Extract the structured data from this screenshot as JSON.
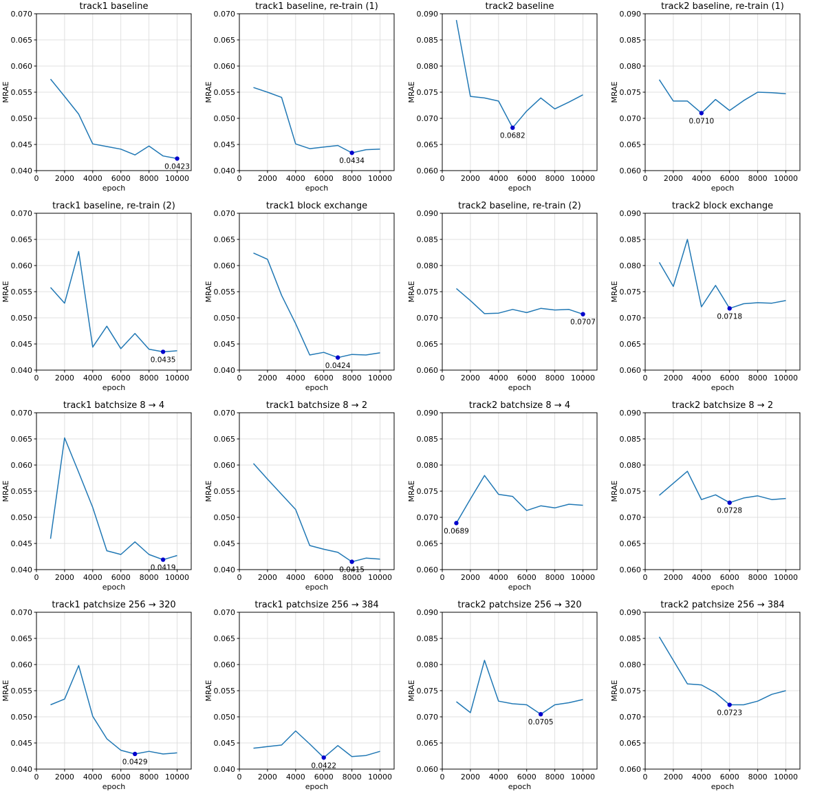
{
  "chart_data": [
    {
      "type": "line",
      "title": "track1 baseline",
      "xlabel": "epoch",
      "ylabel": "MRAE",
      "xlim": [
        0,
        11000
      ],
      "ylim": [
        0.04,
        0.07
      ],
      "xticks": [
        0,
        2000,
        4000,
        6000,
        8000,
        10000
      ],
      "yticks": [
        0.04,
        0.045,
        0.05,
        0.055,
        0.06,
        0.065,
        0.07
      ],
      "grid": true,
      "x": [
        1000,
        2000,
        3000,
        4000,
        5000,
        6000,
        7000,
        8000,
        9000,
        10000
      ],
      "y": [
        0.0575,
        0.0542,
        0.0508,
        0.0451,
        0.0446,
        0.0441,
        0.043,
        0.0447,
        0.0428,
        0.0423
      ],
      "best": {
        "x": 10000,
        "y": 0.0423,
        "label": "0.0423"
      }
    },
    {
      "type": "line",
      "title": "track1 baseline, re-train (1)",
      "xlabel": "epoch",
      "ylabel": "MRAE",
      "xlim": [
        0,
        11000
      ],
      "ylim": [
        0.04,
        0.07
      ],
      "xticks": [
        0,
        2000,
        4000,
        6000,
        8000,
        10000
      ],
      "yticks": [
        0.04,
        0.045,
        0.05,
        0.055,
        0.06,
        0.065,
        0.07
      ],
      "grid": true,
      "x": [
        1000,
        2000,
        3000,
        4000,
        5000,
        6000,
        7000,
        8000,
        9000,
        10000
      ],
      "y": [
        0.0559,
        0.055,
        0.054,
        0.0451,
        0.0442,
        0.0445,
        0.0448,
        0.0434,
        0.044,
        0.0441
      ],
      "best": {
        "x": 8000,
        "y": 0.0434,
        "label": "0.0434"
      }
    },
    {
      "type": "line",
      "title": "track2 baseline",
      "xlabel": "epoch",
      "ylabel": "MRAE",
      "xlim": [
        0,
        11000
      ],
      "ylim": [
        0.06,
        0.09
      ],
      "xticks": [
        0,
        2000,
        4000,
        6000,
        8000,
        10000
      ],
      "yticks": [
        0.06,
        0.065,
        0.07,
        0.075,
        0.08,
        0.085,
        0.09
      ],
      "grid": true,
      "x": [
        1000,
        2000,
        3000,
        4000,
        5000,
        6000,
        7000,
        8000,
        9000,
        10000
      ],
      "y": [
        0.0888,
        0.0742,
        0.0739,
        0.0733,
        0.0682,
        0.0714,
        0.0739,
        0.0718,
        0.0731,
        0.0745
      ],
      "best": {
        "x": 5000,
        "y": 0.0682,
        "label": "0.0682"
      }
    },
    {
      "type": "line",
      "title": "track2 baseline, re-train (1)",
      "xlabel": "epoch",
      "ylabel": "MRAE",
      "xlim": [
        0,
        11000
      ],
      "ylim": [
        0.06,
        0.09
      ],
      "xticks": [
        0,
        2000,
        4000,
        6000,
        8000,
        10000
      ],
      "yticks": [
        0.06,
        0.065,
        0.07,
        0.075,
        0.08,
        0.085,
        0.09
      ],
      "grid": true,
      "x": [
        1000,
        2000,
        3000,
        4000,
        5000,
        6000,
        7000,
        8000,
        9000,
        10000
      ],
      "y": [
        0.0774,
        0.0733,
        0.0733,
        0.071,
        0.0736,
        0.0715,
        0.0734,
        0.075,
        0.0749,
        0.0747
      ],
      "best": {
        "x": 4000,
        "y": 0.071,
        "label": "0.0710"
      }
    },
    {
      "type": "line",
      "title": "track1 baseline, re-train (2)",
      "xlabel": "epoch",
      "ylabel": "MRAE",
      "xlim": [
        0,
        11000
      ],
      "ylim": [
        0.04,
        0.07
      ],
      "xticks": [
        0,
        2000,
        4000,
        6000,
        8000,
        10000
      ],
      "yticks": [
        0.04,
        0.045,
        0.05,
        0.055,
        0.06,
        0.065,
        0.07
      ],
      "grid": true,
      "x": [
        1000,
        2000,
        3000,
        4000,
        5000,
        6000,
        7000,
        8000,
        9000,
        10000
      ],
      "y": [
        0.0558,
        0.0528,
        0.0627,
        0.0444,
        0.0484,
        0.0441,
        0.047,
        0.044,
        0.0435,
        0.0437
      ],
      "best": {
        "x": 9000,
        "y": 0.0435,
        "label": "0.0435"
      }
    },
    {
      "type": "line",
      "title": "track1 block exchange",
      "xlabel": "epoch",
      "ylabel": "MRAE",
      "xlim": [
        0,
        11000
      ],
      "ylim": [
        0.04,
        0.07
      ],
      "xticks": [
        0,
        2000,
        4000,
        6000,
        8000,
        10000
      ],
      "yticks": [
        0.04,
        0.045,
        0.05,
        0.055,
        0.06,
        0.065,
        0.07
      ],
      "grid": true,
      "x": [
        1000,
        2000,
        3000,
        4000,
        5000,
        6000,
        7000,
        8000,
        9000,
        10000
      ],
      "y": [
        0.0624,
        0.0612,
        0.0543,
        0.0489,
        0.0429,
        0.0434,
        0.0424,
        0.043,
        0.0429,
        0.0433
      ],
      "best": {
        "x": 7000,
        "y": 0.0424,
        "label": "0.0424"
      }
    },
    {
      "type": "line",
      "title": "track2 baseline, re-train (2)",
      "xlabel": "epoch",
      "ylabel": "MRAE",
      "xlim": [
        0,
        11000
      ],
      "ylim": [
        0.06,
        0.09
      ],
      "xticks": [
        0,
        2000,
        4000,
        6000,
        8000,
        10000
      ],
      "yticks": [
        0.06,
        0.065,
        0.07,
        0.075,
        0.08,
        0.085,
        0.09
      ],
      "grid": true,
      "x": [
        1000,
        2000,
        3000,
        4000,
        5000,
        6000,
        7000,
        8000,
        9000,
        10000
      ],
      "y": [
        0.0756,
        0.0733,
        0.0708,
        0.0709,
        0.0716,
        0.071,
        0.0718,
        0.0715,
        0.0716,
        0.0707
      ],
      "best": {
        "x": 10000,
        "y": 0.0707,
        "label": "0.0707"
      }
    },
    {
      "type": "line",
      "title": "track2 block exchange",
      "xlabel": "epoch",
      "ylabel": "MRAE",
      "xlim": [
        0,
        11000
      ],
      "ylim": [
        0.06,
        0.09
      ],
      "xticks": [
        0,
        2000,
        4000,
        6000,
        8000,
        10000
      ],
      "yticks": [
        0.06,
        0.065,
        0.07,
        0.075,
        0.08,
        0.085,
        0.09
      ],
      "grid": true,
      "x": [
        1000,
        2000,
        3000,
        4000,
        5000,
        6000,
        7000,
        8000,
        9000,
        10000
      ],
      "y": [
        0.0806,
        0.076,
        0.085,
        0.0721,
        0.0762,
        0.0718,
        0.0727,
        0.0729,
        0.0728,
        0.0733
      ],
      "best": {
        "x": 6000,
        "y": 0.0718,
        "label": "0.0718"
      }
    },
    {
      "type": "line",
      "title": "track1 batchsize 8 → 4",
      "xlabel": "epoch",
      "ylabel": "MRAE",
      "xlim": [
        0,
        11000
      ],
      "ylim": [
        0.04,
        0.07
      ],
      "xticks": [
        0,
        2000,
        4000,
        6000,
        8000,
        10000
      ],
      "yticks": [
        0.04,
        0.045,
        0.05,
        0.055,
        0.06,
        0.065,
        0.07
      ],
      "grid": true,
      "x": [
        1000,
        2000,
        3000,
        4000,
        5000,
        6000,
        7000,
        8000,
        9000,
        10000
      ],
      "y": [
        0.0459,
        0.0652,
        0.0586,
        0.0519,
        0.0436,
        0.0429,
        0.0453,
        0.0429,
        0.0419,
        0.0427
      ],
      "best": {
        "x": 9000,
        "y": 0.0419,
        "label": "0.0419"
      }
    },
    {
      "type": "line",
      "title": "track1 batchsize 8 → 2",
      "xlabel": "epoch",
      "ylabel": "MRAE",
      "xlim": [
        0,
        11000
      ],
      "ylim": [
        0.04,
        0.07
      ],
      "xticks": [
        0,
        2000,
        4000,
        6000,
        8000,
        10000
      ],
      "yticks": [
        0.04,
        0.045,
        0.05,
        0.055,
        0.06,
        0.065,
        0.07
      ],
      "grid": true,
      "x": [
        1000,
        2000,
        3000,
        4000,
        5000,
        6000,
        7000,
        8000,
        9000,
        10000
      ],
      "y": [
        0.0603,
        0.0573,
        0.0544,
        0.0515,
        0.0446,
        0.0439,
        0.0433,
        0.0415,
        0.0422,
        0.042
      ],
      "best": {
        "x": 8000,
        "y": 0.0415,
        "label": "0.0415"
      }
    },
    {
      "type": "line",
      "title": "track2 batchsize 8 → 4",
      "xlabel": "epoch",
      "ylabel": "MRAE",
      "xlim": [
        0,
        11000
      ],
      "ylim": [
        0.06,
        0.09
      ],
      "xticks": [
        0,
        2000,
        4000,
        6000,
        8000,
        10000
      ],
      "yticks": [
        0.06,
        0.065,
        0.07,
        0.075,
        0.08,
        0.085,
        0.09
      ],
      "grid": true,
      "x": [
        1000,
        2000,
        3000,
        4000,
        5000,
        6000,
        7000,
        8000,
        9000,
        10000
      ],
      "y": [
        0.0689,
        0.0735,
        0.078,
        0.0744,
        0.074,
        0.0713,
        0.0722,
        0.0718,
        0.0725,
        0.0723
      ],
      "best": {
        "x": 1000,
        "y": 0.0689,
        "label": "0.0689"
      }
    },
    {
      "type": "line",
      "title": "track2 batchsize 8 → 2",
      "xlabel": "epoch",
      "ylabel": "MRAE",
      "xlim": [
        0,
        11000
      ],
      "ylim": [
        0.06,
        0.09
      ],
      "xticks": [
        0,
        2000,
        4000,
        6000,
        8000,
        10000
      ],
      "yticks": [
        0.06,
        0.065,
        0.07,
        0.075,
        0.08,
        0.085,
        0.09
      ],
      "grid": true,
      "x": [
        1000,
        2000,
        3000,
        4000,
        5000,
        6000,
        7000,
        8000,
        9000,
        10000
      ],
      "y": [
        0.0742,
        0.0765,
        0.0788,
        0.0734,
        0.0743,
        0.0728,
        0.0737,
        0.0741,
        0.0734,
        0.0736
      ],
      "best": {
        "x": 6000,
        "y": 0.0728,
        "label": "0.0728"
      }
    },
    {
      "type": "line",
      "title": "track1 patchsize 256 → 320",
      "xlabel": "epoch",
      "ylabel": "MRAE",
      "xlim": [
        0,
        11000
      ],
      "ylim": [
        0.04,
        0.07
      ],
      "xticks": [
        0,
        2000,
        4000,
        6000,
        8000,
        10000
      ],
      "yticks": [
        0.04,
        0.045,
        0.05,
        0.055,
        0.06,
        0.065,
        0.07
      ],
      "grid": true,
      "x": [
        1000,
        2000,
        3000,
        4000,
        5000,
        6000,
        7000,
        8000,
        9000,
        10000
      ],
      "y": [
        0.0523,
        0.0534,
        0.0598,
        0.0501,
        0.0458,
        0.0436,
        0.0429,
        0.0434,
        0.0429,
        0.0431
      ],
      "best": {
        "x": 7000,
        "y": 0.0429,
        "label": "0.0429"
      }
    },
    {
      "type": "line",
      "title": "track1 patchsize 256 → 384",
      "xlabel": "epoch",
      "ylabel": "MRAE",
      "xlim": [
        0,
        11000
      ],
      "ylim": [
        0.04,
        0.07
      ],
      "xticks": [
        0,
        2000,
        4000,
        6000,
        8000,
        10000
      ],
      "yticks": [
        0.04,
        0.045,
        0.05,
        0.055,
        0.06,
        0.065,
        0.07
      ],
      "grid": true,
      "x": [
        1000,
        2000,
        3000,
        4000,
        5000,
        6000,
        7000,
        8000,
        9000,
        10000
      ],
      "y": [
        0.044,
        0.0443,
        0.0446,
        0.0473,
        0.0448,
        0.0422,
        0.0445,
        0.0424,
        0.0426,
        0.0434
      ],
      "best": {
        "x": 6000,
        "y": 0.0422,
        "label": "0.0422"
      }
    },
    {
      "type": "line",
      "title": "track2 patchsize 256 → 320",
      "xlabel": "epoch",
      "ylabel": "MRAE",
      "xlim": [
        0,
        11000
      ],
      "ylim": [
        0.06,
        0.09
      ],
      "xticks": [
        0,
        2000,
        4000,
        6000,
        8000,
        10000
      ],
      "yticks": [
        0.06,
        0.065,
        0.07,
        0.075,
        0.08,
        0.085,
        0.09
      ],
      "grid": true,
      "x": [
        1000,
        2000,
        3000,
        4000,
        5000,
        6000,
        7000,
        8000,
        9000,
        10000
      ],
      "y": [
        0.0729,
        0.0708,
        0.0808,
        0.073,
        0.0725,
        0.0723,
        0.0705,
        0.0723,
        0.0727,
        0.0733
      ],
      "best": {
        "x": 7000,
        "y": 0.0705,
        "label": "0.0705"
      }
    },
    {
      "type": "line",
      "title": "track2 patchsize 256 → 384",
      "xlabel": "epoch",
      "ylabel": "MRAE",
      "xlim": [
        0,
        11000
      ],
      "ylim": [
        0.06,
        0.09
      ],
      "xticks": [
        0,
        2000,
        4000,
        6000,
        8000,
        10000
      ],
      "yticks": [
        0.06,
        0.065,
        0.07,
        0.075,
        0.08,
        0.085,
        0.09
      ],
      "grid": true,
      "x": [
        1000,
        2000,
        3000,
        4000,
        5000,
        6000,
        7000,
        8000,
        9000,
        10000
      ],
      "y": [
        0.0853,
        0.0808,
        0.0763,
        0.0761,
        0.0746,
        0.0723,
        0.0723,
        0.073,
        0.0743,
        0.075
      ],
      "best": {
        "x": 6000,
        "y": 0.0723,
        "label": "0.0723"
      }
    }
  ],
  "style": {
    "line_color": "#1f77b4",
    "marker_color": "#0000cc",
    "grid_color": "#d9d9d9",
    "axis_color": "#000000"
  }
}
